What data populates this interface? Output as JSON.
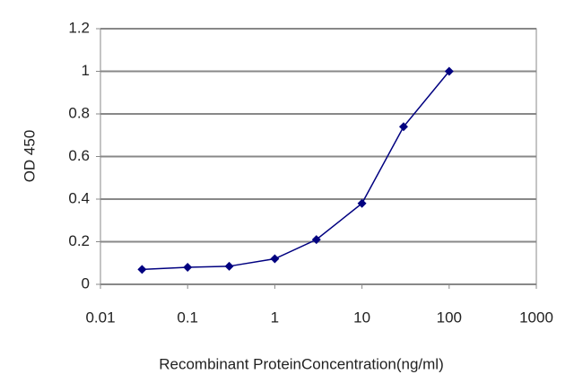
{
  "chart_data": {
    "type": "line",
    "x_label": "Recombinant ProteinConcentration(ng/ml)",
    "y_label": "OD 450",
    "xscale": "log",
    "grid": true,
    "xlim": [
      0.01,
      1000
    ],
    "xticks": [
      0.01,
      0.1,
      1,
      10,
      100,
      1000
    ],
    "ylim": [
      0,
      1.2
    ],
    "yticks": [
      0,
      0.2,
      0.4,
      0.6,
      0.8,
      1,
      1.2
    ],
    "x": [
      0.03,
      0.1,
      0.3,
      1,
      3,
      10,
      30,
      100
    ],
    "series": [
      {
        "color": "#000080",
        "values": [
          0.07,
          0.08,
          0.085,
          0.12,
          0.21,
          0.38,
          0.74,
          1.0
        ]
      }
    ]
  }
}
